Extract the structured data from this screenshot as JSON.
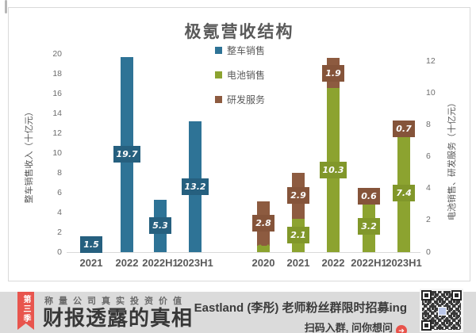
{
  "chart_data": {
    "type": "bar",
    "title": "极氪营收结构",
    "grid": false,
    "legend_position": "top-center-vertical",
    "legend": [
      {
        "label": "整车销售",
        "color": "#2e7396"
      },
      {
        "label": "电池销售",
        "color": "#8ca330"
      },
      {
        "label": "研发服务",
        "color": "#8d5b40"
      }
    ],
    "left_chart": {
      "series_name": "整车销售",
      "color": "#2e7396",
      "label_box_color": "#26607f",
      "categories": [
        "2021",
        "2022",
        "2022H1",
        "2023H1"
      ],
      "values": [
        1.5,
        19.7,
        5.3,
        13.2
      ],
      "ylabel": "整车销售收入（十亿元）",
      "ylim": [
        0,
        20
      ],
      "tick_step": 2
    },
    "right_chart": {
      "categories": [
        "2020",
        "2021",
        "2022",
        "2022H1",
        "2023H1"
      ],
      "series": [
        {
          "name": "电池销售",
          "key": "battery-sales",
          "color": "#8ca330",
          "label_box_color": "#81972a",
          "values": [
            0.4,
            2.1,
            10.3,
            3.2,
            7.4
          ]
        },
        {
          "name": "研发服务",
          "key": "rd-service",
          "color": "#8d5b40",
          "label_box_color": "#85543a",
          "values": [
            2.8,
            2.9,
            1.9,
            0.6,
            0.7
          ]
        }
      ],
      "ylabel": "电池销售、研发服务（十亿元）",
      "ylim": [
        0,
        12
      ],
      "tick_step": 2
    }
  },
  "banner": {
    "ribbon": "第三季",
    "tagline": "称量公司真实投资价值",
    "brand": "财报透露的真相",
    "promo_line1": "Eastland (李彤) 老师粉丝群限时招募ing",
    "promo_line2": "扫码入群, 问你想问",
    "arrow_glyph": "➔",
    "accent_red": "#e8534b",
    "banner_bg": "#dbdbdb"
  }
}
